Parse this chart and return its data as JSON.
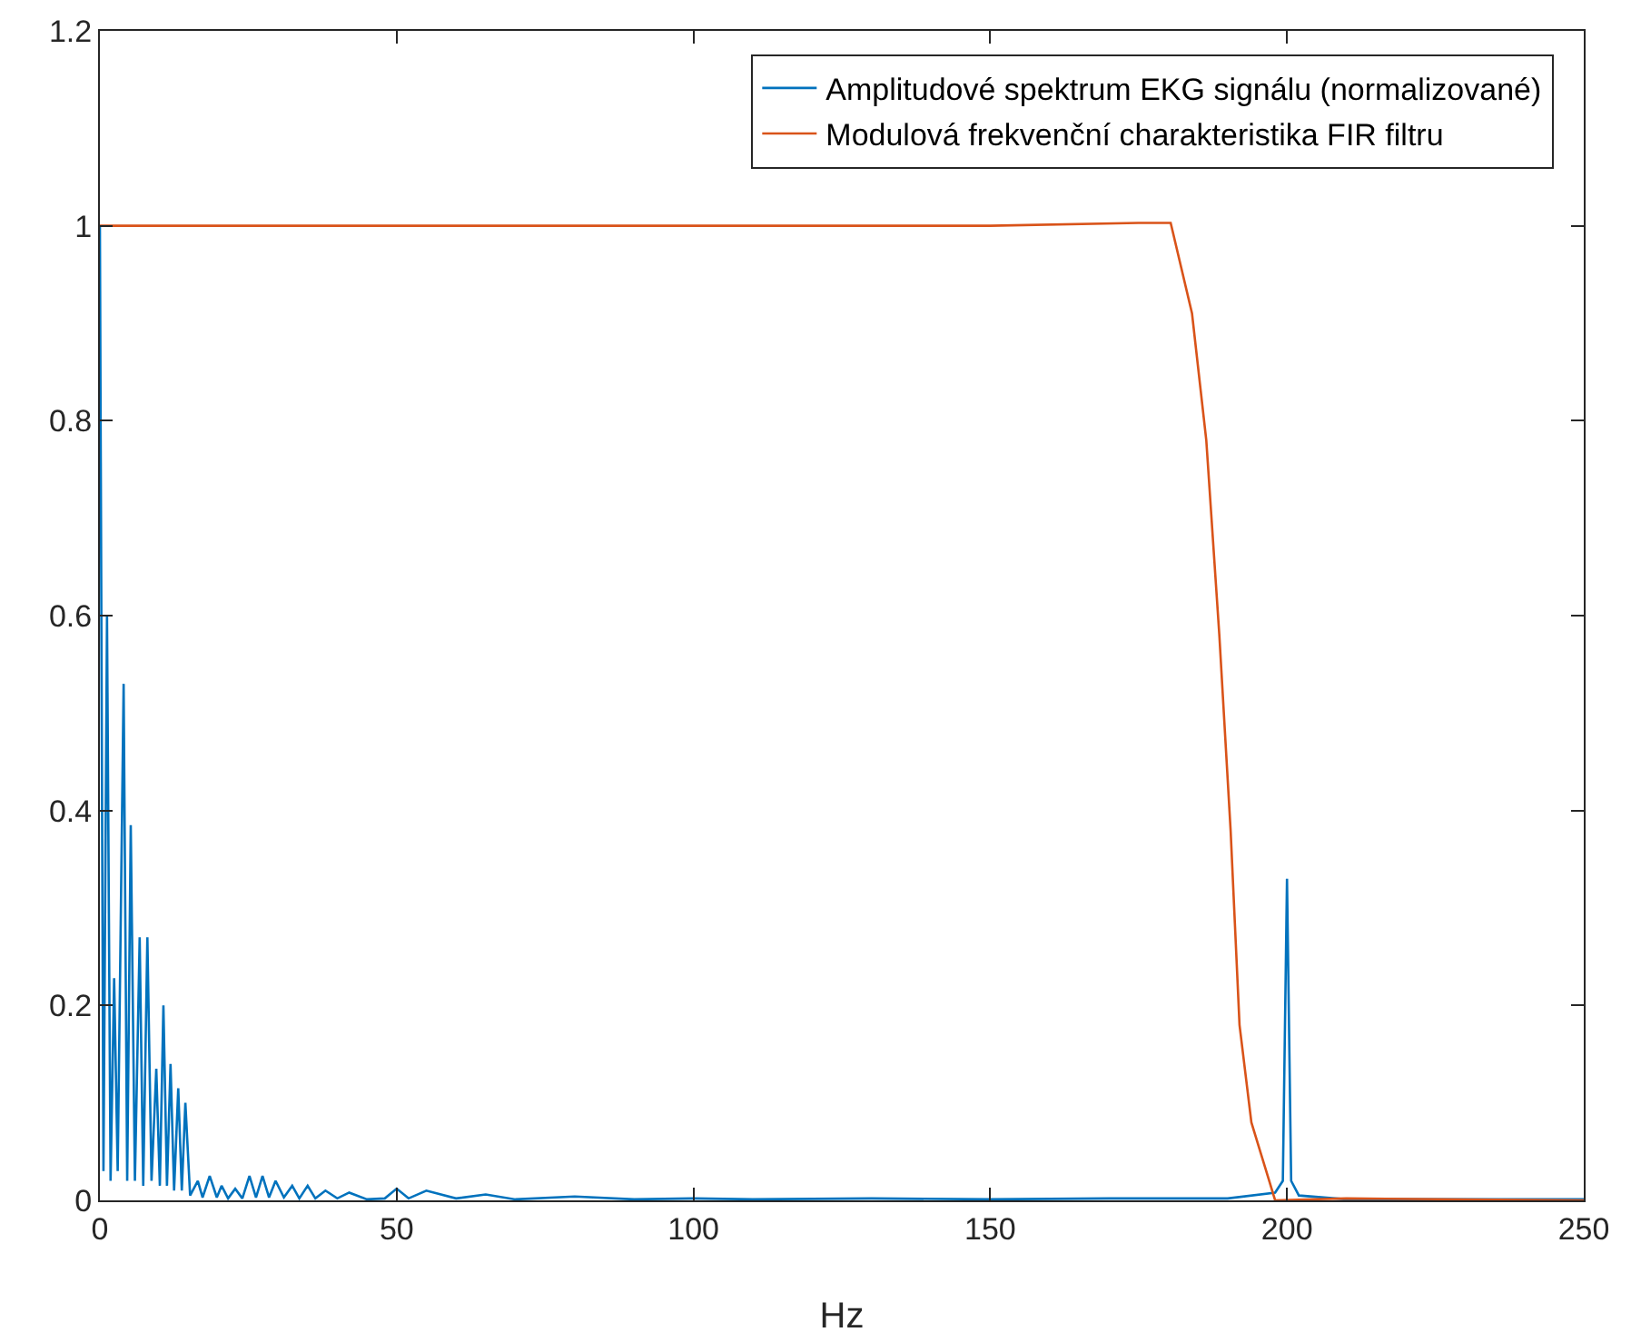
{
  "chart_data": {
    "type": "line",
    "xlabel": "Hz",
    "xlim": [
      0,
      250
    ],
    "xticks": [
      0,
      50,
      100,
      150,
      200,
      250
    ],
    "ylim": [
      0,
      1.2
    ],
    "yticks": [
      0,
      0.2,
      0.4,
      0.6,
      0.8,
      1,
      1.2
    ],
    "grid": false,
    "legend": "top right",
    "marker": "none",
    "line_style": "solid",
    "series": [
      {
        "name": "Amplitudové spektrum EKG signálu (normalizované)",
        "color": "#0072bd",
        "x": [
          0,
          0.6,
          1.2,
          1.8,
          2.4,
          3.0,
          4.0,
          4.6,
          5.2,
          5.9,
          6.7,
          7.3,
          8.0,
          8.7,
          9.5,
          10.1,
          10.7,
          11.3,
          11.9,
          12.5,
          13.2,
          13.8,
          14.4,
          15.2,
          16.5,
          17.3,
          18.5,
          19.7,
          20.5,
          21.6,
          22.8,
          24,
          25.2,
          26.3,
          27.4,
          28.5,
          29.6,
          31,
          32.4,
          33.6,
          35,
          36.3,
          38,
          40,
          42,
          45,
          48,
          50,
          52,
          55,
          60,
          65,
          70,
          80,
          90,
          100,
          110,
          130,
          150,
          170,
          190,
          198,
          199.3,
          200,
          200.7,
          202,
          210,
          250
        ],
        "values": [
          1.0,
          0.03,
          0.6,
          0.02,
          0.228,
          0.03,
          0.53,
          0.02,
          0.385,
          0.02,
          0.27,
          0.015,
          0.27,
          0.02,
          0.135,
          0.015,
          0.2,
          0.015,
          0.14,
          0.01,
          0.115,
          0.01,
          0.1,
          0.005,
          0.02,
          0.003,
          0.025,
          0.003,
          0.015,
          0.002,
          0.012,
          0.002,
          0.025,
          0.003,
          0.025,
          0.003,
          0.02,
          0.003,
          0.015,
          0.002,
          0.015,
          0.002,
          0.01,
          0.002,
          0.008,
          0.001,
          0.002,
          0.012,
          0.002,
          0.01,
          0.002,
          0.006,
          0.001,
          0.004,
          0.001,
          0.002,
          0.001,
          0.002,
          0.001,
          0.002,
          0.002,
          0.008,
          0.02,
          0.33,
          0.02,
          0.005,
          0.001,
          0.001
        ]
      },
      {
        "name": "Modulová frekvenční charakteristika FIR filtru",
        "color": "#d95319",
        "x": [
          0,
          50,
          100,
          150,
          175,
          180.4,
          184,
          186.4,
          188.6,
          190.5,
          192,
          194,
          196.8,
          198,
          210,
          250
        ],
        "values": [
          1,
          1,
          1,
          1,
          1.003,
          1.003,
          0.91,
          0.78,
          0.58,
          0.38,
          0.18,
          0.08,
          0.024,
          0,
          0.002,
          0
        ]
      }
    ]
  }
}
